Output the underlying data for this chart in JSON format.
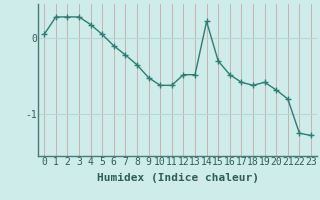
{
  "x": [
    0,
    1,
    2,
    3,
    4,
    5,
    6,
    7,
    8,
    9,
    10,
    11,
    12,
    13,
    14,
    15,
    16,
    17,
    18,
    19,
    20,
    21,
    22,
    23
  ],
  "y": [
    0.05,
    0.28,
    0.28,
    0.28,
    0.18,
    0.05,
    -0.1,
    -0.22,
    -0.35,
    -0.52,
    -0.62,
    -0.62,
    -0.48,
    -0.48,
    0.22,
    -0.3,
    -0.48,
    -0.58,
    -0.62,
    -0.58,
    -0.68,
    -0.8,
    -1.25,
    -1.28
  ],
  "line_color": "#2e7d72",
  "marker": "+",
  "marker_size": 4,
  "linewidth": 1.0,
  "background_color": "#cdecea",
  "grid_color_v": "#c8a8a8",
  "grid_color_h": "#b8d8d4",
  "xlabel": "Humidex (Indice chaleur)",
  "xlabel_fontsize": 8,
  "ytick_labels": [
    "0",
    "-1"
  ],
  "ytick_values": [
    0,
    -1
  ],
  "ylim": [
    -1.55,
    0.45
  ],
  "xlim": [
    -0.5,
    23.5
  ],
  "tick_fontsize": 7,
  "xlabel_fontweight": "bold"
}
